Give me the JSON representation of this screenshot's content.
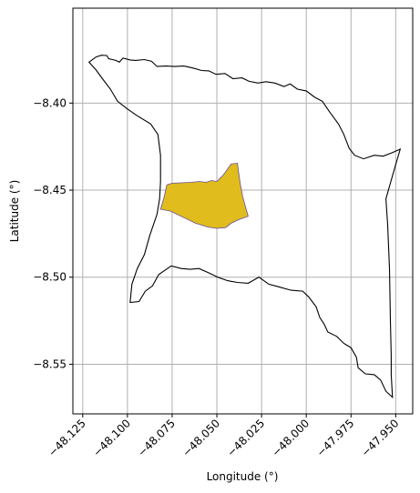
{
  "map": {
    "xlabel": "Longitude (°)",
    "ylabel": "Latitude (°)",
    "xticks": [
      {
        "value": -48.125,
        "label": "−48.125"
      },
      {
        "value": -48.1,
        "label": "−48.100"
      },
      {
        "value": -48.075,
        "label": "−48.075"
      },
      {
        "value": -48.05,
        "label": "−48.050"
      },
      {
        "value": -48.025,
        "label": "−48.025"
      },
      {
        "value": -48.0,
        "label": "−48.000"
      },
      {
        "value": -47.975,
        "label": "−47.975"
      },
      {
        "value": -47.95,
        "label": "−47.950"
      }
    ],
    "yticks": [
      {
        "value": -8.4,
        "label": "−8.40"
      },
      {
        "value": -8.45,
        "label": "−8.45"
      },
      {
        "value": -8.5,
        "label": "−8.50"
      },
      {
        "value": -8.55,
        "label": "−8.55"
      }
    ],
    "xlim": [
      -48.1305,
      -47.9405
    ],
    "ylim": [
      -8.5785,
      -8.3455
    ],
    "grid": true,
    "colors": {
      "boundary": "#000000",
      "highlight_fill": "#e0bc1c",
      "highlight_edge": "#6a4fa0",
      "grid": "#b0b0b0"
    },
    "boundary": [
      [
        -48.1215,
        -8.3765
      ],
      [
        -48.1175,
        -8.3735
      ],
      [
        -48.1145,
        -8.3725
      ],
      [
        -48.1115,
        -8.3727
      ],
      [
        -48.1105,
        -8.3745
      ],
      [
        -48.1065,
        -8.3755
      ],
      [
        -48.1045,
        -8.3765
      ],
      [
        -48.1025,
        -8.3742
      ],
      [
        -48.0985,
        -8.3752
      ],
      [
        -48.0955,
        -8.3755
      ],
      [
        -48.0905,
        -8.375
      ],
      [
        -48.0865,
        -8.376
      ],
      [
        -48.0835,
        -8.379
      ],
      [
        -48.0785,
        -8.3787
      ],
      [
        -48.0735,
        -8.379
      ],
      [
        -48.0685,
        -8.3787
      ],
      [
        -48.0635,
        -8.3798
      ],
      [
        -48.0585,
        -8.3813
      ],
      [
        -48.0545,
        -8.3815
      ],
      [
        -48.0505,
        -8.3835
      ],
      [
        -48.0455,
        -8.383
      ],
      [
        -48.041,
        -8.386
      ],
      [
        -48.036,
        -8.3855
      ],
      [
        -48.032,
        -8.3875
      ],
      [
        -48.027,
        -8.3885
      ],
      [
        -48.0225,
        -8.3877
      ],
      [
        -48.0175,
        -8.3885
      ],
      [
        -48.0125,
        -8.3905
      ],
      [
        -48.009,
        -8.389
      ],
      [
        -48.005,
        -8.392
      ],
      [
        -48.0,
        -8.393
      ],
      [
        -47.9955,
        -8.3965
      ],
      [
        -47.991,
        -8.399
      ],
      [
        -47.987,
        -8.405
      ],
      [
        -47.982,
        -8.412
      ],
      [
        -47.979,
        -8.418
      ],
      [
        -47.976,
        -8.426
      ],
      [
        -47.973,
        -8.43
      ],
      [
        -47.968,
        -8.432
      ],
      [
        -47.962,
        -8.43
      ],
      [
        -47.957,
        -8.4305
      ],
      [
        -47.952,
        -8.4285
      ],
      [
        -47.9475,
        -8.4265
      ],
      [
        -47.9505,
        -8.437
      ],
      [
        -47.9555,
        -8.455
      ],
      [
        -47.9545,
        -8.47
      ],
      [
        -47.9535,
        -8.495
      ],
      [
        -47.953,
        -8.525
      ],
      [
        -47.9525,
        -8.545
      ],
      [
        -47.9525,
        -8.556
      ],
      [
        -47.9518,
        -8.569
      ],
      [
        -47.9555,
        -8.5655
      ],
      [
        -47.9585,
        -8.559
      ],
      [
        -47.962,
        -8.556
      ],
      [
        -47.967,
        -8.5555
      ],
      [
        -47.971,
        -8.552
      ],
      [
        -47.972,
        -8.546
      ],
      [
        -47.975,
        -8.5405
      ],
      [
        -47.979,
        -8.538
      ],
      [
        -47.983,
        -8.534
      ],
      [
        -47.988,
        -8.5315
      ],
      [
        -47.99,
        -8.527
      ],
      [
        -47.9925,
        -8.523
      ],
      [
        -47.9945,
        -8.517
      ],
      [
        -47.9985,
        -8.5115
      ],
      [
        -48.002,
        -8.508
      ],
      [
        -48.0085,
        -8.5075
      ],
      [
        -48.0155,
        -8.5055
      ],
      [
        -48.021,
        -8.504
      ],
      [
        -48.0265,
        -8.5
      ],
      [
        -48.0325,
        -8.5035
      ],
      [
        -48.0385,
        -8.503
      ],
      [
        -48.044,
        -8.502
      ],
      [
        -48.0495,
        -8.5
      ],
      [
        -48.0545,
        -8.4975
      ],
      [
        -48.06,
        -8.495
      ],
      [
        -48.065,
        -8.4955
      ],
      [
        -48.07,
        -8.495
      ],
      [
        -48.0755,
        -8.4935
      ],
      [
        -48.079,
        -8.496
      ],
      [
        -48.0825,
        -8.4985
      ],
      [
        -48.086,
        -8.505
      ],
      [
        -48.09,
        -8.508
      ],
      [
        -48.0935,
        -8.514
      ],
      [
        -48.0985,
        -8.5145
      ],
      [
        -48.0975,
        -8.504
      ],
      [
        -48.0945,
        -8.495
      ],
      [
        -48.0905,
        -8.487
      ],
      [
        -48.0875,
        -8.476
      ],
      [
        -48.0835,
        -8.464
      ],
      [
        -48.082,
        -8.455
      ],
      [
        -48.0815,
        -8.445
      ],
      [
        -48.0815,
        -8.43
      ],
      [
        -48.083,
        -8.418
      ],
      [
        -48.087,
        -8.412
      ],
      [
        -48.095,
        -8.407
      ],
      [
        -48.1005,
        -8.403
      ],
      [
        -48.1055,
        -8.399
      ],
      [
        -48.1095,
        -8.392
      ],
      [
        -48.114,
        -8.386
      ],
      [
        -48.1175,
        -8.381
      ],
      [
        -48.1215,
        -8.3765
      ]
    ],
    "highlight": [
      [
        -48.078,
        -8.447
      ],
      [
        -48.075,
        -8.446
      ],
      [
        -48.07,
        -8.4458
      ],
      [
        -48.064,
        -8.4455
      ],
      [
        -48.06,
        -8.445
      ],
      [
        -48.056,
        -8.4455
      ],
      [
        -48.053,
        -8.4445
      ],
      [
        -48.05,
        -8.445
      ],
      [
        -48.047,
        -8.442
      ],
      [
        -48.0455,
        -8.44
      ],
      [
        -48.042,
        -8.435
      ],
      [
        -48.0385,
        -8.4345
      ],
      [
        -48.037,
        -8.446
      ],
      [
        -48.0355,
        -8.454
      ],
      [
        -48.0325,
        -8.465
      ],
      [
        -48.038,
        -8.467
      ],
      [
        -48.042,
        -8.469
      ],
      [
        -48.045,
        -8.4715
      ],
      [
        -48.05,
        -8.472
      ],
      [
        -48.055,
        -8.4712
      ],
      [
        -48.062,
        -8.469
      ],
      [
        -48.068,
        -8.466
      ],
      [
        -48.076,
        -8.462
      ],
      [
        -48.0815,
        -8.461
      ],
      [
        -48.0795,
        -8.454
      ],
      [
        -48.078,
        -8.447
      ]
    ]
  }
}
